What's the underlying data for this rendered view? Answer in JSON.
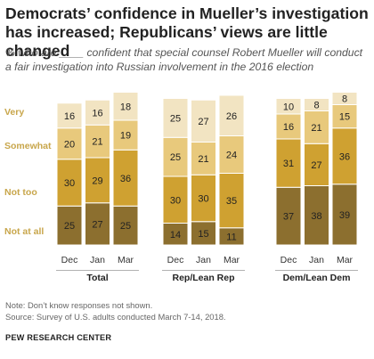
{
  "title": "Democrats’ confidence in Mueller’s investigation has increased; Republicans’ views are little changed",
  "subtitle": "% who are ____ confident that special counsel Robert Mueller will conduct a fair investigation into Russian involvement in the 2016 election",
  "colors": {
    "very": "#8C6F2F",
    "somewhat": "#CFA131",
    "not_too": "#E8C97C",
    "not_at_all": "#F2E4C2",
    "legend_text": "#C8A64B"
  },
  "chart_data": {
    "type": "bar",
    "stacked": true,
    "categories": [
      "Dec",
      "Jan",
      "Mar"
    ],
    "series": [
      {
        "name": "Very",
        "color": "#8C6F2F"
      },
      {
        "name": "Somewhat",
        "color": "#CFA131"
      },
      {
        "name": "Not too",
        "color": "#E8C97C"
      },
      {
        "name": "Not at all",
        "color": "#F2E4C2"
      }
    ],
    "groups": [
      {
        "name": "Total",
        "values": [
          [
            25,
            30,
            20,
            16
          ],
          [
            27,
            29,
            21,
            16
          ],
          [
            25,
            36,
            19,
            18
          ]
        ]
      },
      {
        "name": "Rep/Lean Rep",
        "values": [
          [
            14,
            30,
            25,
            25
          ],
          [
            15,
            30,
            21,
            27
          ],
          [
            11,
            35,
            24,
            26
          ]
        ]
      },
      {
        "name": "Dem/Lean Dem",
        "values": [
          [
            37,
            31,
            16,
            10
          ],
          [
            38,
            27,
            21,
            8
          ],
          [
            39,
            36,
            15,
            8
          ]
        ]
      }
    ]
  },
  "notes": [
    "Note: Don’t know responses not shown.",
    "Source: Survey of U.S. adults conducted March 7-14, 2018."
  ],
  "brand": "PEW RESEARCH CENTER"
}
